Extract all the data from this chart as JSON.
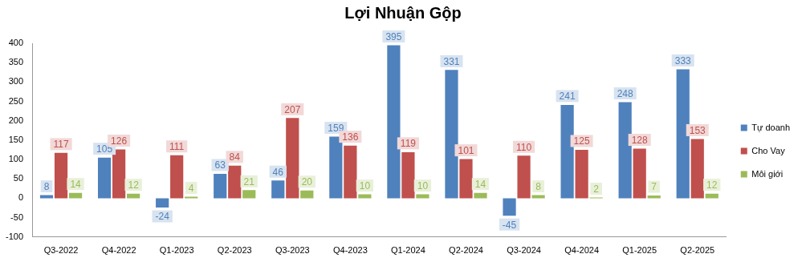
{
  "chart_data": {
    "type": "bar",
    "title": "Lợi Nhuận Gộp",
    "categories": [
      "Q3-2022",
      "Q4-2022",
      "Q1-2023",
      "Q2-2023",
      "Q3-2023",
      "Q4-2023",
      "Q1-2024",
      "Q2-2024",
      "Q3-2024",
      "Q4-2024",
      "Q1-2025",
      "Q2-2025"
    ],
    "series": [
      {
        "name": "Tự doanh",
        "color": "#4f81bd",
        "values": [
          8,
          105,
          -24,
          63,
          46,
          159,
          395,
          331,
          -45,
          241,
          248,
          333
        ]
      },
      {
        "name": "Cho Vay",
        "color": "#c0504d",
        "values": [
          117,
          126,
          111,
          84,
          207,
          136,
          119,
          101,
          110,
          125,
          128,
          153
        ]
      },
      {
        "name": "Môi giới",
        "color": "#9bbb59",
        "values": [
          14,
          12,
          4,
          21,
          20,
          10,
          10,
          14,
          8,
          2,
          7,
          12
        ]
      }
    ],
    "ylim": [
      -100,
      400
    ],
    "yticks": [
      -100,
      -50,
      0,
      50,
      100,
      150,
      200,
      250,
      300,
      350,
      400
    ],
    "grid": false,
    "legend": "right",
    "data_labels": true
  }
}
